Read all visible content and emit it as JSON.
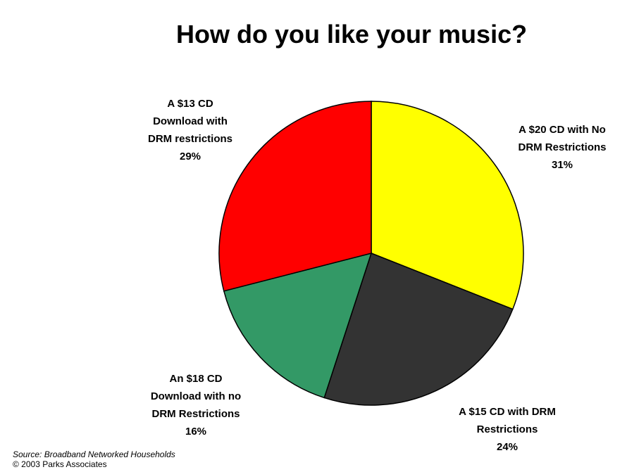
{
  "chart_data": {
    "type": "pie",
    "title": "How do you like your music?",
    "slices": [
      {
        "name": "A $20 CD with No DRM Restrictions",
        "label_lines": [
          "A $20 CD with No",
          "DRM Restrictions"
        ],
        "percent_label": "31%",
        "value": 31,
        "color": "#ffff00"
      },
      {
        "name": "A $15 CD with DRM Restrictions",
        "label_lines": [
          "A $15 CD with DRM",
          "Restrictions"
        ],
        "percent_label": "24%",
        "value": 24,
        "color": "#333333"
      },
      {
        "name": "An $18 CD Download with no DRM Restrictions",
        "label_lines": [
          "An $18 CD",
          "Download with no",
          "DRM Restrictions"
        ],
        "percent_label": "16%",
        "value": 16,
        "color": "#339966"
      },
      {
        "name": "A $13 CD Download with DRM restrictions",
        "label_lines": [
          "A $13 CD",
          "Download with",
          "DRM restrictions"
        ],
        "percent_label": "29%",
        "value": 29,
        "color": "#ff0000"
      }
    ],
    "start_angle": "12 o'clock",
    "direction": "clockwise"
  },
  "footer": {
    "source": "Source: Broadband Networked Households",
    "copyright": "© 2003 Parks Associates"
  }
}
